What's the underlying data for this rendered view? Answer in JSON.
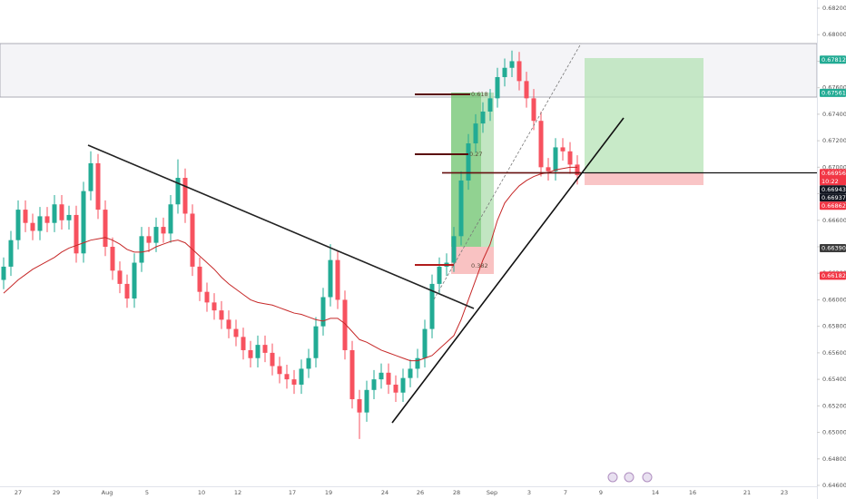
{
  "chart_data": {
    "type": "candlestick",
    "open": [
      0.6615,
      0.6625,
      0.6645,
      0.6668,
      0.6658,
      0.6652,
      0.6663,
      0.6658,
      0.6672,
      0.666,
      0.6664,
      0.6635,
      0.6682,
      0.6703,
      0.6668,
      0.664,
      0.6622,
      0.6612,
      0.6601,
      0.6628,
      0.6648,
      0.6643,
      0.6655,
      0.665,
      0.6672,
      0.6692,
      0.6665,
      0.6625,
      0.6606,
      0.6598,
      0.6592,
      0.6585,
      0.6578,
      0.6572,
      0.6562,
      0.6556,
      0.6566,
      0.656,
      0.655,
      0.6544,
      0.654,
      0.6536,
      0.6548,
      0.6556,
      0.658,
      0.6602,
      0.663,
      0.66,
      0.6562,
      0.6525,
      0.6515,
      0.6532,
      0.654,
      0.6545,
      0.6536,
      0.653,
      0.6541,
      0.6548,
      0.6556,
      0.6578,
      0.6612,
      0.6625,
      0.6628,
      0.6648,
      0.669,
      0.6718,
      0.6733,
      0.6742,
      0.6752,
      0.6768,
      0.6775,
      0.678,
      0.6765,
      0.6752,
      0.6735,
      0.67,
      0.6697,
      0.6715,
      0.6712,
      0.6702
    ],
    "high": [
      0.6632,
      0.6652,
      0.6675,
      0.6675,
      0.6665,
      0.667,
      0.667,
      0.6679,
      0.6679,
      0.6671,
      0.6671,
      0.6689,
      0.6712,
      0.671,
      0.6675,
      0.6647,
      0.6629,
      0.6619,
      0.6635,
      0.6655,
      0.6655,
      0.6662,
      0.6662,
      0.6679,
      0.6706,
      0.6699,
      0.6672,
      0.6632,
      0.6613,
      0.6605,
      0.6599,
      0.6592,
      0.6585,
      0.6579,
      0.6569,
      0.6573,
      0.6573,
      0.6567,
      0.6557,
      0.6551,
      0.6547,
      0.6555,
      0.6563,
      0.6587,
      0.6609,
      0.6642,
      0.6637,
      0.6607,
      0.6569,
      0.6532,
      0.6539,
      0.6547,
      0.6552,
      0.6552,
      0.6543,
      0.6548,
      0.6555,
      0.6563,
      0.6585,
      0.6619,
      0.6632,
      0.6635,
      0.6655,
      0.6697,
      0.6725,
      0.674,
      0.6749,
      0.6759,
      0.6775,
      0.6782,
      0.6788,
      0.6787,
      0.6772,
      0.6759,
      0.6742,
      0.6707,
      0.6722,
      0.6722,
      0.6719,
      0.6709
    ],
    "low": [
      0.6608,
      0.6618,
      0.6638,
      0.6651,
      0.6645,
      0.6645,
      0.6651,
      0.6651,
      0.6653,
      0.6653,
      0.6628,
      0.6628,
      0.6675,
      0.6661,
      0.6633,
      0.6615,
      0.6605,
      0.6594,
      0.6594,
      0.6621,
      0.6636,
      0.6636,
      0.6643,
      0.6643,
      0.6665,
      0.6658,
      0.6618,
      0.6599,
      0.6591,
      0.6585,
      0.6578,
      0.6571,
      0.6565,
      0.6555,
      0.6549,
      0.6549,
      0.6553,
      0.6543,
      0.6537,
      0.6533,
      0.6529,
      0.6529,
      0.6541,
      0.6549,
      0.6573,
      0.6595,
      0.6593,
      0.6555,
      0.6518,
      0.6495,
      0.6508,
      0.6525,
      0.6533,
      0.6529,
      0.6523,
      0.6523,
      0.6534,
      0.6541,
      0.6549,
      0.6571,
      0.6605,
      0.6618,
      0.6621,
      0.6641,
      0.6683,
      0.6711,
      0.6726,
      0.6735,
      0.6745,
      0.6761,
      0.6768,
      0.6758,
      0.6745,
      0.6728,
      0.6693,
      0.669,
      0.669,
      0.6705,
      0.6695,
      0.6687
    ],
    "close": [
      0.6625,
      0.6645,
      0.6668,
      0.6658,
      0.6652,
      0.6663,
      0.6658,
      0.6672,
      0.666,
      0.6664,
      0.6635,
      0.6682,
      0.6703,
      0.6668,
      0.664,
      0.6622,
      0.6612,
      0.6601,
      0.6628,
      0.6648,
      0.6643,
      0.6655,
      0.665,
      0.6672,
      0.6692,
      0.6665,
      0.6625,
      0.6606,
      0.6598,
      0.6592,
      0.6585,
      0.6578,
      0.6572,
      0.6562,
      0.6556,
      0.6566,
      0.656,
      0.655,
      0.6544,
      0.654,
      0.6536,
      0.6548,
      0.6556,
      0.658,
      0.6602,
      0.663,
      0.66,
      0.6562,
      0.6525,
      0.6515,
      0.6532,
      0.654,
      0.6545,
      0.6536,
      0.653,
      0.6541,
      0.6548,
      0.6556,
      0.6578,
      0.6612,
      0.6625,
      0.6628,
      0.6648,
      0.669,
      0.6718,
      0.6733,
      0.6742,
      0.6752,
      0.6768,
      0.6775,
      0.678,
      0.6765,
      0.6752,
      0.6735,
      0.67,
      0.6697,
      0.6715,
      0.6712,
      0.6702,
      0.6694
    ],
    "ma": [
      0.6605,
      0.661,
      0.6615,
      0.6619,
      0.6623,
      0.6626,
      0.6629,
      0.6632,
      0.6636,
      0.6639,
      0.6641,
      0.6643,
      0.6645,
      0.6646,
      0.6647,
      0.6645,
      0.6642,
      0.6638,
      0.6636,
      0.6636,
      0.6637,
      0.664,
      0.6642,
      0.6644,
      0.6645,
      0.6643,
      0.6638,
      0.6633,
      0.6628,
      0.6623,
      0.6617,
      0.6612,
      0.6608,
      0.6604,
      0.66,
      0.6598,
      0.6597,
      0.6596,
      0.6594,
      0.6592,
      0.659,
      0.6589,
      0.6587,
      0.6585,
      0.6584,
      0.6586,
      0.6586,
      0.6582,
      0.6576,
      0.657,
      0.6568,
      0.6565,
      0.6562,
      0.656,
      0.6558,
      0.6556,
      0.6554,
      0.6554,
      0.6556,
      0.6558,
      0.6563,
      0.6568,
      0.6573,
      0.6585,
      0.66,
      0.6615,
      0.663,
      0.6642,
      0.666,
      0.6673,
      0.668,
      0.6686,
      0.669,
      0.6693,
      0.6695,
      0.6696,
      0.6698,
      0.6699,
      0.67,
      0.67
    ],
    "up_color": "#22ab94",
    "down_color": "#f7525f",
    "ma_color": "#c62828",
    "ylim": [
      0.646,
      0.682
    ],
    "yticks": [
      {
        "value": 0.682,
        "label": "0.68200"
      },
      {
        "value": 0.68,
        "label": "0.68000"
      },
      {
        "value": 0.678,
        "label": "0.67800"
      },
      {
        "value": 0.676,
        "label": "0.67600"
      },
      {
        "value": 0.674,
        "label": "0.67400"
      },
      {
        "value": 0.672,
        "label": "0.67200"
      },
      {
        "value": 0.67,
        "label": "0.67000"
      },
      {
        "value": 0.668,
        "label": "0.66800"
      },
      {
        "value": 0.666,
        "label": "0.66600"
      },
      {
        "value": 0.664,
        "label": "0.66400"
      },
      {
        "value": 0.662,
        "label": "0.66200"
      },
      {
        "value": 0.66,
        "label": "0.66000"
      },
      {
        "value": 0.658,
        "label": "0.65800"
      },
      {
        "value": 0.656,
        "label": "0.65600"
      },
      {
        "value": 0.654,
        "label": "0.65400"
      },
      {
        "value": 0.652,
        "label": "0.65200"
      },
      {
        "value": 0.65,
        "label": "0.65000"
      },
      {
        "value": 0.648,
        "label": "0.64800"
      },
      {
        "value": 0.646,
        "label": "0.64600"
      }
    ],
    "grid": false,
    "xlabels": [
      "27",
      "29",
      "Aug",
      "5",
      "10",
      "12",
      "17",
      "19",
      "24",
      "26",
      "28",
      "Sep",
      "3",
      "7",
      "9",
      "14",
      "16",
      "21",
      "23"
    ],
    "price_labels": [
      {
        "value": 0.67812,
        "label": "0.67812",
        "color": "#22ab94"
      },
      {
        "value": 0.67561,
        "label": "0.67561",
        "color": "#22ab94"
      },
      {
        "value": 0.66956,
        "label": "0.66956",
        "color": "#f23645",
        "countdown": "10:22"
      },
      {
        "value": 0.66943,
        "label": "0.66943",
        "color": "#131722"
      },
      {
        "value": 0.66937,
        "label": "0.66937",
        "color": "#131722"
      },
      {
        "value": 0.66862,
        "label": "0.66862",
        "color": "#f23645"
      },
      {
        "value": 0.6639,
        "label": "0.66390",
        "color": "#3c3c3c"
      },
      {
        "value": 0.66182,
        "label": "0.66182",
        "color": "#f23645"
      }
    ],
    "annotations": [
      "0.618",
      "0.27",
      "0.382"
    ]
  }
}
